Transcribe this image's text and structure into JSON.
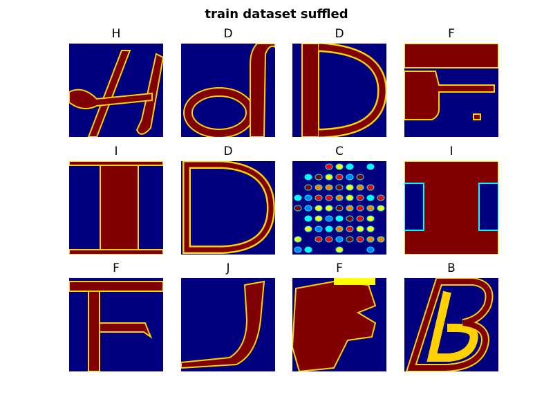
{
  "title": "train dataset suffled",
  "panels": [
    {
      "label": "H"
    },
    {
      "label": "D"
    },
    {
      "label": "D"
    },
    {
      "label": "F"
    },
    {
      "label": "I"
    },
    {
      "label": "D"
    },
    {
      "label": "C"
    },
    {
      "label": "I"
    },
    {
      "label": "F"
    },
    {
      "label": "J"
    },
    {
      "label": "F"
    },
    {
      "label": "B"
    }
  ]
}
